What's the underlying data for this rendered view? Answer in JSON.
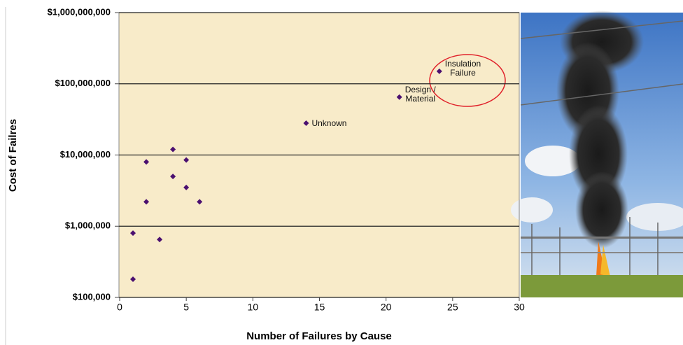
{
  "chart_data": {
    "type": "scatter",
    "y_label": "Cost of Failres",
    "x_label": "Number of Failures by Cause",
    "x": [
      1,
      1,
      2,
      2,
      3,
      4,
      4,
      5,
      5,
      6,
      14,
      21,
      24
    ],
    "values": [
      180000,
      800000,
      2200000,
      8000000,
      650000,
      12000000,
      5000000,
      8500000,
      3500000,
      2200000,
      28000000,
      65000000,
      150000000
    ],
    "point_labels": [
      null,
      null,
      null,
      null,
      null,
      null,
      null,
      null,
      null,
      null,
      "Unknown",
      "Design /\nMaterial",
      "Insulation\nFailure"
    ],
    "color": "#4b1070",
    "xlim": [
      0,
      30
    ],
    "xticks": [
      0,
      5,
      10,
      15,
      20,
      25,
      30
    ],
    "ylim": [
      100000,
      1000000000
    ],
    "yticks": [
      {
        "value": 100000,
        "label": "$100,000"
      },
      {
        "value": 1000000,
        "label": "$1,000,000"
      },
      {
        "value": 10000000,
        "label": "$10,000,000"
      },
      {
        "value": 100000000,
        "label": "$100,000,000"
      },
      {
        "value": 1000000000,
        "label": "$1,000,000,000"
      }
    ],
    "y_scale": "log",
    "grid": true
  }
}
